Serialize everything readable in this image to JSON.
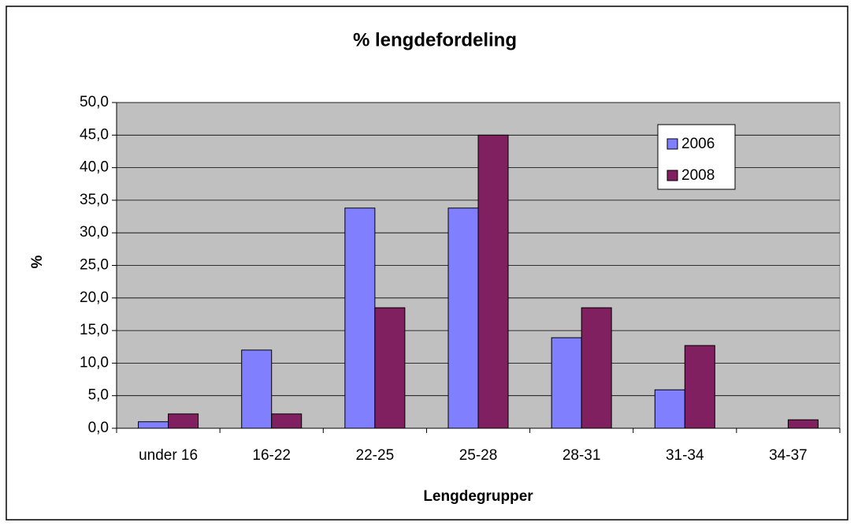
{
  "chart_data": {
    "type": "bar",
    "title": "% lengdefordeling",
    "x_label": "Lengdegrupper",
    "y_label": "%",
    "categories": [
      "under 16",
      "16-22",
      "22-25",
      "25-28",
      "28-31",
      "31-34",
      "34-37"
    ],
    "series": [
      {
        "name": "2006",
        "color": "#8080ff",
        "values": [
          1.0,
          12.0,
          33.8,
          33.8,
          13.9,
          5.9,
          0
        ]
      },
      {
        "name": "2008",
        "color": "#802060",
        "values": [
          2.2,
          2.2,
          18.5,
          45.0,
          18.5,
          12.7,
          1.3
        ]
      }
    ],
    "ylim": [
      0,
      50
    ],
    "yticks": [
      {
        "value": 0,
        "label": "0,0"
      },
      {
        "value": 5,
        "label": "5,0"
      },
      {
        "value": 10,
        "label": "10,0"
      },
      {
        "value": 15,
        "label": "15,0"
      },
      {
        "value": 20,
        "label": "20,0"
      },
      {
        "value": 25,
        "label": "25,0"
      },
      {
        "value": 30,
        "label": "30,0"
      },
      {
        "value": 35,
        "label": "35,0"
      },
      {
        "value": 40,
        "label": "40,0"
      },
      {
        "value": 45,
        "label": "45,0"
      },
      {
        "value": 50,
        "label": "50,0"
      }
    ],
    "grid": true,
    "legend": "top-right",
    "plot_background": "#c0c0c0"
  }
}
